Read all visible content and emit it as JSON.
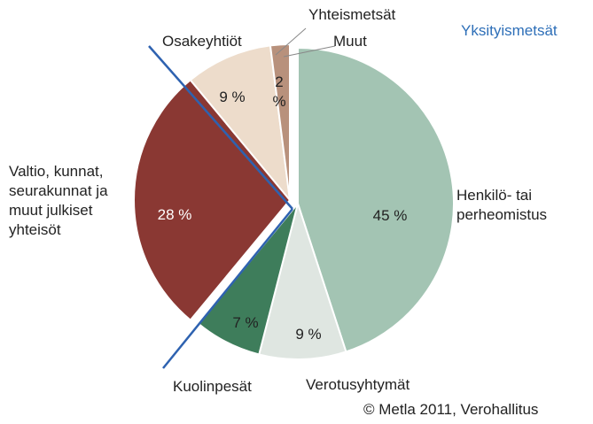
{
  "chart_data": {
    "type": "pie",
    "categories": [
      "Henkilö- tai perheomistus",
      "Verotusyhtymät",
      "Kuolinpesät",
      "Valtio, kunnat, seurakunnat ja muut julkiset yhteisöt",
      "Osakeyhtiöt",
      "Yhteismetsät"
    ],
    "values": [
      45,
      9,
      7,
      28,
      9,
      2
    ],
    "value_labels": [
      "45 %",
      "9 %",
      "7 %",
      "28 %",
      "9 %",
      "2 %"
    ],
    "colors": [
      "#a3c4b3",
      "#dfe6e1",
      "#3e7d5b",
      "#8a3833",
      "#eddccb",
      "#b8917c"
    ],
    "exploded": [
      false,
      false,
      false,
      true,
      true,
      true
    ],
    "annotations": [
      "Muut",
      "Yksityismetsät",
      "© Metla 2011, Verohallitus"
    ]
  }
}
